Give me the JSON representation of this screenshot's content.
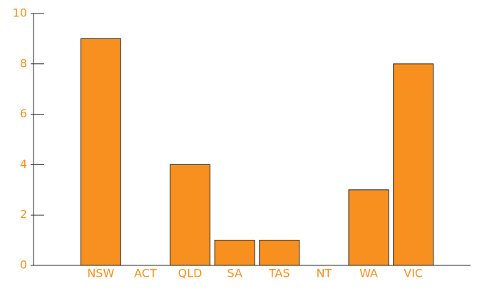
{
  "chart_data": {
    "type": "bar",
    "categories": [
      "NSW",
      "ACT",
      "QLD",
      "SA",
      "TAS",
      "NT",
      "WA",
      "VIC"
    ],
    "values": [
      9,
      0,
      4,
      1,
      1,
      0,
      3,
      8
    ],
    "color": "#f7901e",
    "ylim": [
      0,
      10
    ],
    "yticks": [
      0,
      2,
      4,
      6,
      8,
      10
    ],
    "grid": false
  }
}
